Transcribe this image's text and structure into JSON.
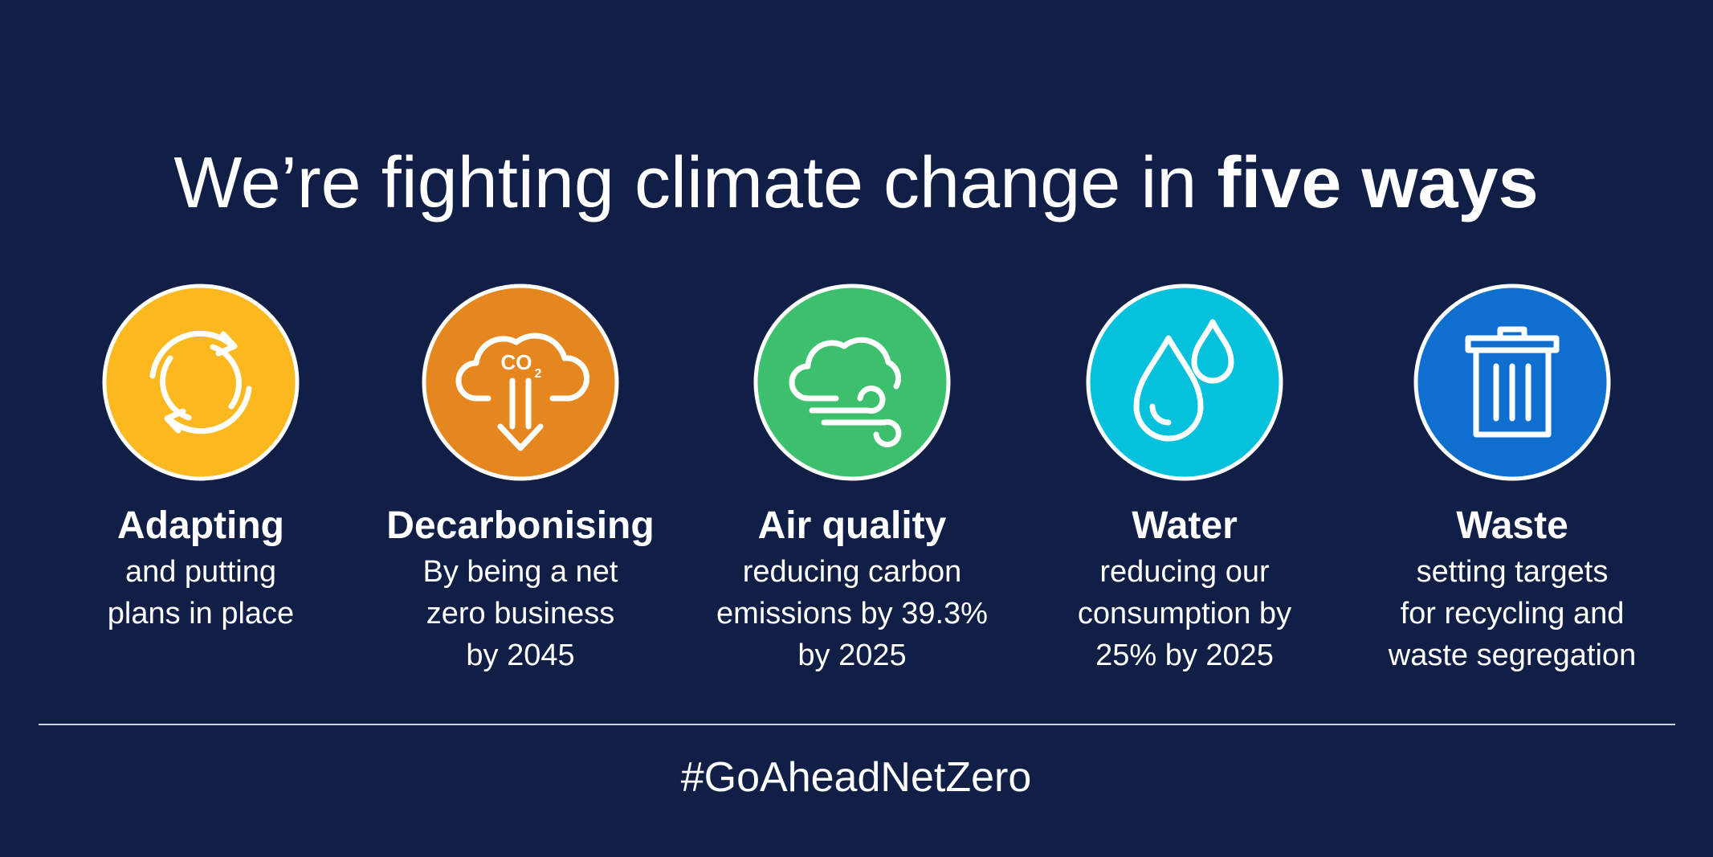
{
  "title": {
    "regular": "We’re fighting climate change in ",
    "bold": "five ways"
  },
  "items": [
    {
      "heading": "Adapting",
      "lines": [
        "and putting",
        "plans in place"
      ],
      "color": "#fbb81f"
    },
    {
      "heading": "Decarbonising",
      "lines": [
        "By being a net",
        "zero business",
        "by 2045"
      ],
      "color": "#e5861f",
      "icon_text": [
        "CO",
        "2"
      ]
    },
    {
      "heading": "Air quality",
      "lines": [
        "reducing carbon",
        "emissions by 39.3%",
        "by 2025"
      ],
      "color": "#3cc06e"
    },
    {
      "heading": "Water",
      "lines": [
        "reducing our",
        "consumption by",
        "25% by 2025"
      ],
      "color": "#05c1dc"
    },
    {
      "heading": "Waste",
      "lines": [
        "setting targets",
        "for recycling and",
        "waste segregation"
      ],
      "color": "#0f6fcf"
    }
  ],
  "hashtag": "#GoAheadNetZero"
}
